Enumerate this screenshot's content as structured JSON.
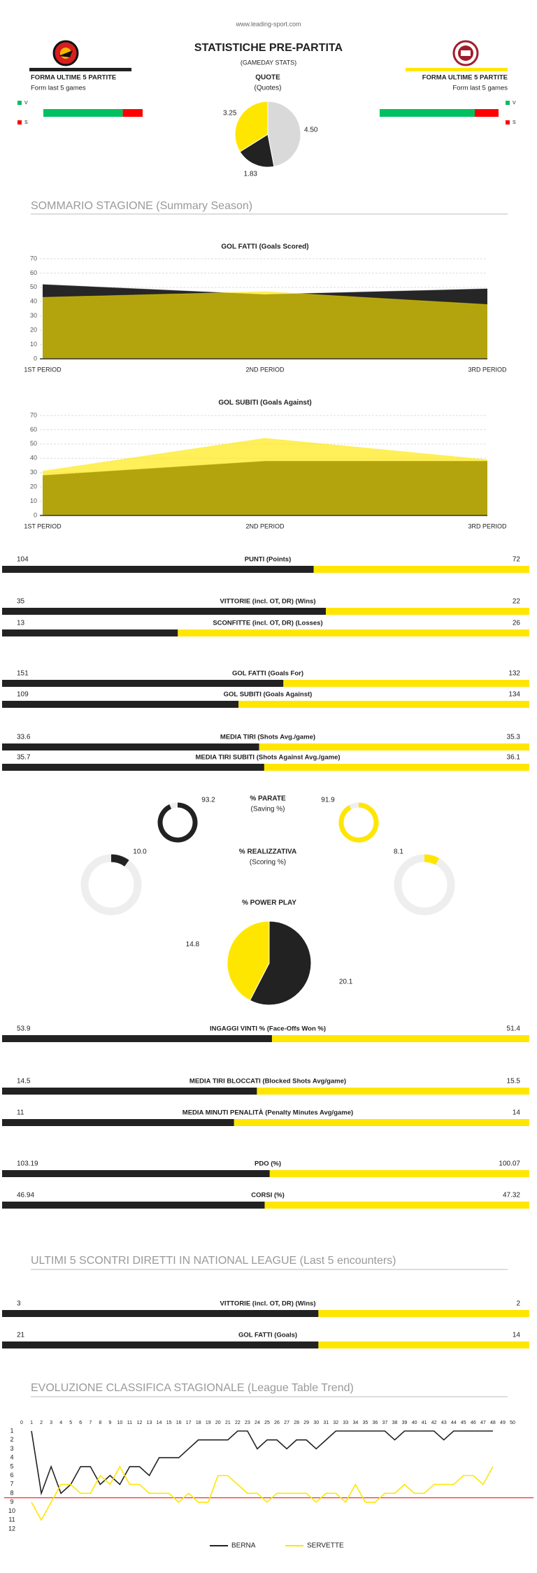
{
  "header": {
    "site": "www.leading-sport.com",
    "title": "STATISTICHE PRE-PARTITA",
    "subtitle": "(GAMEDAY STATS)"
  },
  "teams": [
    {
      "form_title": "FORMA ULTIME 5 PARTITE",
      "form_subtitle": "Form last 5 games",
      "color": "#222222"
    },
    {
      "form_title": "FORMA ULTIME 5 PARTITE",
      "form_subtitle": "Form last 5 games",
      "color": "#ffe600"
    }
  ],
  "sections": [
    "SOMMARIO STAGIONE (Summary Season)",
    "ULTIMI 5 SCONTRI DIRETTI IN NATIONAL LEAGUE (Last 5 encounters)",
    "EVOLUZIONE CLASSIFICA STAGIONALE (League Table Trend)"
  ],
  "chart_data": [
    {
      "type": "form",
      "categories": [
        "V",
        "S"
      ],
      "colors": [
        "#00c060",
        "#ff0000"
      ],
      "series": [
        {
          "values": [
            4,
            1
          ]
        },
        {
          "values": [
            4,
            1
          ]
        }
      ]
    },
    {
      "type": "pie",
      "title": "QUOTE",
      "subtitle": "(Quotes)",
      "values": [
        4.5,
        1.83,
        3.25
      ],
      "value_labels": [
        "4.50",
        "1.83",
        "3.25"
      ],
      "colors": [
        "#d9d9d9",
        "#222222",
        "#ffe600"
      ]
    },
    {
      "type": "area",
      "title": "GOL FATTI (Goals Scored)",
      "categories": [
        "1ST PERIOD",
        "2ND PERIOD",
        "3RD PERIOD"
      ],
      "series": [
        {
          "color": "#262626",
          "values": [
            52,
            45,
            49
          ]
        },
        {
          "color": "#ffe600",
          "values": [
            43,
            47,
            38
          ]
        }
      ],
      "ylim": [
        0,
        70
      ],
      "yticks": [
        0,
        10,
        20,
        30,
        40,
        50,
        60,
        70
      ],
      "grid": true
    },
    {
      "type": "area",
      "title": "GOL SUBITI (Goals Against)",
      "categories": [
        "1ST PERIOD",
        "2ND PERIOD",
        "3RD PERIOD"
      ],
      "series": [
        {
          "color": "#262626",
          "values": [
            28,
            38,
            38
          ]
        },
        {
          "color": "#ffe600",
          "values": [
            31,
            54,
            39
          ]
        }
      ],
      "ylim": [
        0,
        70
      ],
      "yticks": [
        0,
        10,
        20,
        30,
        40,
        50,
        60,
        70
      ],
      "grid": true
    },
    {
      "type": "comparison",
      "colors": [
        "#222222",
        "#ffe600"
      ],
      "rows": [
        {
          "label": "PUNTI (Points)",
          "values": [
            104,
            72
          ]
        },
        {
          "label": "VITTORIE (incl. OT, DR) (Wins)",
          "values": [
            35,
            22
          ]
        },
        {
          "label": "SCONFITTE (incl. OT, DR) (Losses)",
          "values": [
            13,
            26
          ]
        },
        {
          "label": "GOL FATTI (Goals For)",
          "values": [
            151,
            132
          ]
        },
        {
          "label": "GOL SUBITI (Goals Against)",
          "values": [
            109,
            134
          ]
        },
        {
          "label": "MEDIA TIRI (Shots Avg./game)",
          "values": [
            33.6,
            35.3
          ]
        },
        {
          "label": "MEDIA TIRI SUBITI (Shots Against Avg./game)",
          "values": [
            35.7,
            36.1
          ]
        }
      ]
    },
    {
      "type": "donut",
      "title": "% PARATE",
      "subtitle": "(Saving %)",
      "values": [
        93.2,
        91.9
      ],
      "colors": [
        "#222222",
        "#ffe600"
      ]
    },
    {
      "type": "donut",
      "title": "% REALIZZATIVA",
      "subtitle": "(Scoring %)",
      "values": [
        10,
        8.1
      ],
      "value_labels": [
        "10.0",
        "8.1"
      ],
      "colors": [
        "#222222",
        "#ffe600"
      ]
    },
    {
      "type": "pie",
      "title": "% POWER PLAY",
      "values": [
        20.1,
        14.8
      ],
      "colors": [
        "#222222",
        "#ffe600"
      ]
    },
    {
      "type": "comparison",
      "colors": [
        "#222222",
        "#ffe600"
      ],
      "rows": [
        {
          "label": "INGAGGI VINTI % (Face-Offs Won %)",
          "values": [
            53.9,
            51.4
          ]
        },
        {
          "label": "MEDIA TIRI BLOCCATI (Blocked Shots Avg/game)",
          "values": [
            14.5,
            15.5
          ]
        },
        {
          "label": "MEDIA MINUTI PENALITÀ (Penalty Minutes Avg/game)",
          "values": [
            11,
            14
          ]
        },
        {
          "label": "PDO (%)",
          "values": [
            103.19,
            100.07
          ]
        },
        {
          "label": "CORSI (%)",
          "values": [
            46.94,
            47.32
          ]
        }
      ]
    },
    {
      "type": "comparison",
      "colors": [
        "#222222",
        "#ffe600"
      ],
      "rows": [
        {
          "label": "VITTORIE (incl. OT, DR) (Wins)",
          "values": [
            3,
            2
          ]
        },
        {
          "label": "GOL FATTI (Goals)",
          "values": [
            21,
            14
          ]
        }
      ]
    },
    {
      "type": "line",
      "x": [
        1,
        2,
        3,
        4,
        5,
        6,
        7,
        8,
        9,
        10,
        11,
        12,
        13,
        14,
        15,
        16,
        17,
        18,
        19,
        20,
        21,
        22,
        23,
        24,
        25,
        26,
        27,
        28,
        29,
        30,
        31,
        32,
        33,
        34,
        35,
        36,
        37,
        38,
        39,
        40,
        41,
        42,
        43,
        44,
        45,
        46,
        47,
        48
      ],
      "series": [
        {
          "name": "BERNA",
          "color": "#222222",
          "values": [
            1,
            8,
            5,
            8,
            7,
            5,
            5,
            7,
            6,
            7,
            5,
            5,
            6,
            4,
            4,
            4,
            3,
            2,
            2,
            2,
            2,
            1,
            1,
            3,
            2,
            2,
            3,
            2,
            2,
            3,
            2,
            1,
            1,
            1,
            1,
            1,
            1,
            2,
            1,
            1,
            1,
            1,
            2,
            1,
            1,
            1,
            1,
            1
          ]
        },
        {
          "name": "SERVETTE",
          "color": "#ffe600",
          "values": [
            9,
            11,
            9,
            7,
            7,
            8,
            8,
            6,
            7,
            5,
            7,
            7,
            8,
            8,
            8,
            9,
            8,
            9,
            9,
            6,
            6,
            7,
            8,
            8,
            9,
            8,
            8,
            8,
            8,
            9,
            8,
            8,
            9,
            7,
            9,
            9,
            8,
            8,
            7,
            8,
            8,
            7,
            7,
            7,
            6,
            6,
            7,
            5
          ]
        }
      ],
      "xlim": [
        0,
        50
      ],
      "xticks": [
        0,
        1,
        2,
        3,
        4,
        5,
        6,
        7,
        8,
        9,
        10,
        11,
        12,
        13,
        14,
        15,
        16,
        17,
        18,
        19,
        20,
        21,
        22,
        23,
        24,
        25,
        26,
        27,
        28,
        29,
        30,
        31,
        32,
        33,
        34,
        35,
        36,
        37,
        38,
        39,
        40,
        41,
        42,
        43,
        44,
        45,
        46,
        47,
        48,
        49,
        50
      ],
      "ylim": [
        1,
        12
      ],
      "yticks": [
        1,
        2,
        3,
        4,
        5,
        6,
        7,
        8,
        9,
        10,
        11,
        12
      ],
      "y_inverted": true,
      "reference_line": {
        "value": 8.5,
        "color": "#ff0000"
      },
      "legend": "bottom"
    }
  ]
}
